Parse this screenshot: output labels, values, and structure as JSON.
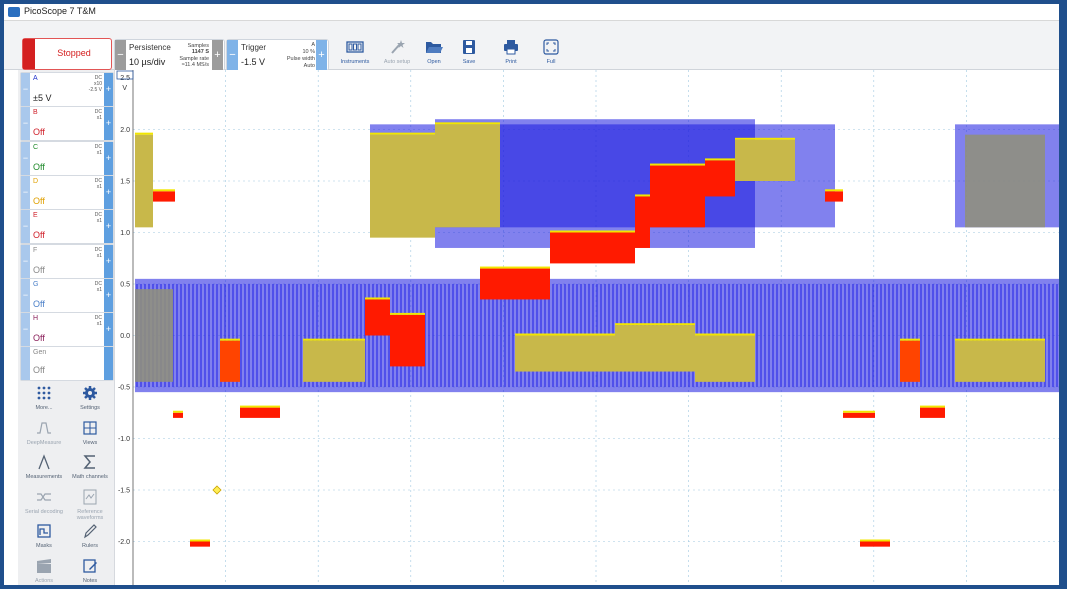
{
  "window": {
    "title": "PicoScope 7 T&M"
  },
  "toolbar": {
    "run_status": "Stopped",
    "persistence_label": "Persistence",
    "timebase": "10 µs/div",
    "samples_label": "Samples",
    "samples_value": "1147 S",
    "sample_rate_label": "Sample rate",
    "sample_rate_value": "≈11.4 MS/s",
    "trigger_label": "Trigger",
    "trigger_level": "-1.5 V",
    "trigger_channel": "A",
    "trigger_pct": "10 %",
    "trigger_type": "Pulse width",
    "trigger_mode": "Auto",
    "tools": [
      {
        "label": "Instruments"
      },
      {
        "label": "Auto setup"
      },
      {
        "label": "Open"
      },
      {
        "label": "Save"
      },
      {
        "label": "Print"
      },
      {
        "label": "Full"
      }
    ]
  },
  "channels": [
    {
      "name": "A",
      "coupling": "DC",
      "probe": "x10",
      "offset": "-2.5 V",
      "range": "±5 V",
      "color": "#2233cc"
    },
    {
      "name": "B",
      "coupling": "DC",
      "probe": "x1",
      "offset": "",
      "range": "Off",
      "color": "#d0202a"
    },
    {
      "name": "C",
      "coupling": "DC",
      "probe": "x1",
      "offset": "",
      "range": "Off",
      "color": "#1f8a2a"
    },
    {
      "name": "D",
      "coupling": "DC",
      "probe": "x1",
      "offset": "",
      "range": "Off",
      "color": "#e0a000"
    },
    {
      "name": "E",
      "coupling": "DC",
      "probe": "x1",
      "offset": "",
      "range": "Off",
      "color": "#d0202a"
    },
    {
      "name": "F",
      "coupling": "DC",
      "probe": "x1",
      "offset": "",
      "range": "Off",
      "color": "#8a8a8a"
    },
    {
      "name": "G",
      "coupling": "DC",
      "probe": "x1",
      "offset": "",
      "range": "Off",
      "color": "#4a7fc8"
    },
    {
      "name": "H",
      "coupling": "DC",
      "probe": "x1",
      "offset": "",
      "range": "Off",
      "color": "#8a1f5a"
    }
  ],
  "generator": {
    "name": "Gen",
    "state": "Off"
  },
  "side_buttons": [
    {
      "label": "More...",
      "icon": "grid-icon"
    },
    {
      "label": "Settings",
      "icon": "gear-icon"
    },
    {
      "label": "DeepMeasure",
      "icon": "deepmeasure-icon"
    },
    {
      "label": "Views",
      "icon": "views-icon"
    },
    {
      "label": "Measurements",
      "icon": "ruler-icon"
    },
    {
      "label": "Math channels",
      "icon": "sigma-icon"
    },
    {
      "label": "Serial decoding",
      "icon": "serial-icon"
    },
    {
      "label": "Reference waveforms",
      "icon": "reference-icon"
    },
    {
      "label": "Masks",
      "icon": "mask-icon"
    },
    {
      "label": "Rulers",
      "icon": "pen-icon"
    },
    {
      "label": "Actions",
      "icon": "clapper-icon"
    },
    {
      "label": "Notes",
      "icon": "notes-icon"
    }
  ],
  "scope": {
    "unit": "V",
    "axis_top_label": "2.5",
    "y_ticks": [
      "2.0",
      "1.5",
      "1.0",
      "0.5",
      "0.0",
      "-0.5",
      "-1.0",
      "-1.5",
      "-2.0"
    ],
    "colors": {
      "trace": "#1a1ae0",
      "persist_mid": "#c8b84a",
      "persist_hot": "#ff1a00",
      "grid": "#9fc7e0"
    }
  }
}
